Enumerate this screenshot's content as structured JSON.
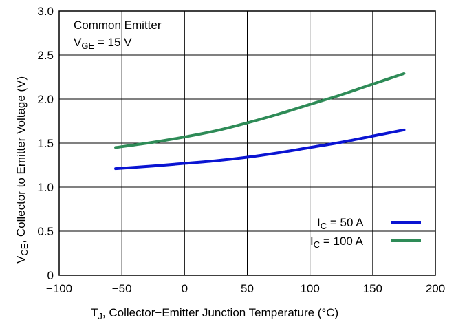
{
  "chart_data": {
    "type": "line",
    "xlabel": {
      "main": "T",
      "sub": "J",
      "rest": ", Collector−Emitter Junction Temperature (°C)"
    },
    "ylabel": {
      "main": "V",
      "sub": "CE",
      "rest": ", Collector to Emitter Voltage (V)"
    },
    "xlim": [
      -100,
      200
    ],
    "ylim": [
      0,
      3.0
    ],
    "xticks": [
      -100,
      -50,
      0,
      50,
      100,
      150,
      200
    ],
    "xtick_labels": [
      "−100",
      "−50",
      "0",
      "50",
      "100",
      "150",
      "200"
    ],
    "yticks": [
      0,
      0.5,
      1.0,
      1.5,
      2.0,
      2.5,
      3.0
    ],
    "ytick_labels": [
      "0",
      "0.5",
      "1.0",
      "1.5",
      "2.0",
      "2.5",
      "3.0"
    ],
    "grid": true,
    "annotation": {
      "line1": "Common Emitter",
      "line2_main": "V",
      "line2_sub": "GE",
      "line2_rest": " = 15 V"
    },
    "legend_position": "bottom-right",
    "series": [
      {
        "name": "I_C = 50 A",
        "label_main": "I",
        "label_sub": "C",
        "label_rest": " = 50 A",
        "color": "#0a14d2",
        "x": [
          -55,
          -25,
          0,
          25,
          50,
          75,
          100,
          125,
          150,
          175
        ],
        "y": [
          1.21,
          1.24,
          1.27,
          1.3,
          1.34,
          1.39,
          1.45,
          1.51,
          1.58,
          1.65
        ]
      },
      {
        "name": "I_C = 100 A",
        "label_main": "I",
        "label_sub": "C",
        "label_rest": " = 100 A",
        "color": "#2e8b57",
        "x": [
          -55,
          -25,
          0,
          25,
          50,
          75,
          100,
          125,
          150,
          175
        ],
        "y": [
          1.45,
          1.51,
          1.57,
          1.64,
          1.73,
          1.83,
          1.94,
          2.05,
          2.17,
          2.29
        ]
      }
    ]
  }
}
